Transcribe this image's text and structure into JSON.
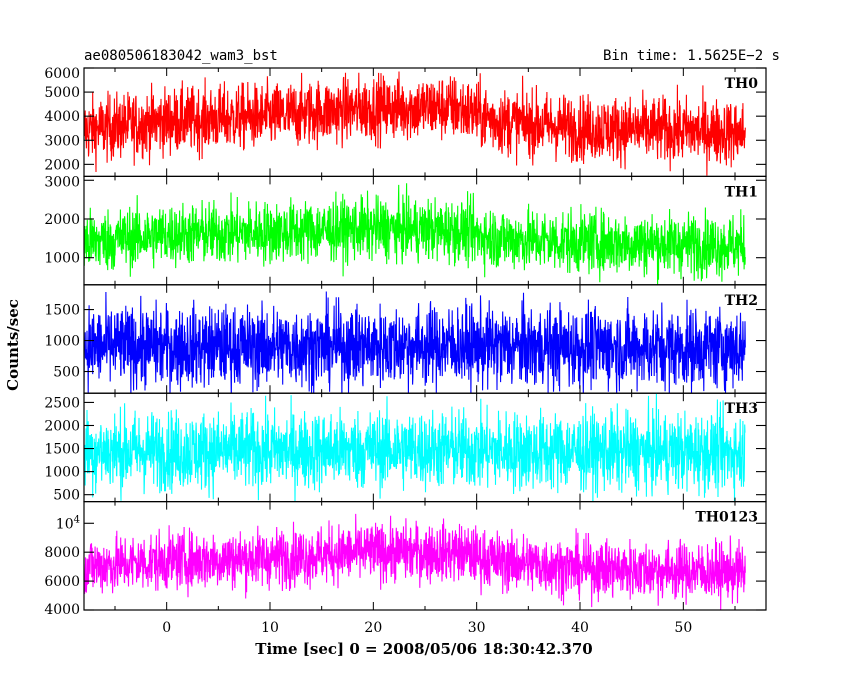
{
  "header": {
    "left": "ae080506183042_wam3_bst",
    "right": "Bin time: 1.5625E−2 s"
  },
  "chart_data": {
    "type": "line",
    "title": "ae080506183042_wam3_bst",
    "xlabel": "Time [sec] 0 = 2008/05/06 18:30:42.370",
    "ylabel": "Counts/sec",
    "xlim": [
      -8,
      58
    ],
    "x_ticks": [
      "0",
      "10",
      "20",
      "30",
      "40",
      "50"
    ],
    "x_tick_values": [
      0,
      10,
      20,
      30,
      40,
      50
    ],
    "data_range_x": [
      -8,
      56
    ],
    "bin_time_s": 0.015625,
    "panels": [
      {
        "name": "TH0",
        "color": "#ff0000",
        "ylim": [
          1500,
          6000
        ],
        "yticks": [
          2000,
          3000,
          4000,
          5000,
          6000
        ],
        "ytick_labels": [
          "2000",
          "3000",
          "4000",
          "5000",
          "6000"
        ],
        "mean_profile": {
          "x": [
            -8,
            0,
            10,
            20,
            28,
            32,
            40,
            50,
            56
          ],
          "y": [
            3400,
            3800,
            4000,
            4350,
            4350,
            3800,
            3500,
            3400,
            3300
          ]
        },
        "noise_spread": 1350
      },
      {
        "name": "TH1",
        "color": "#00ff00",
        "ylim": [
          300,
          3100
        ],
        "yticks": [
          1000,
          2000,
          3000
        ],
        "ytick_labels": [
          "1000",
          "2000",
          "3000"
        ],
        "mean_profile": {
          "x": [
            -8,
            0,
            10,
            20,
            28,
            32,
            40,
            50,
            56
          ],
          "y": [
            1400,
            1600,
            1650,
            1750,
            1700,
            1500,
            1400,
            1350,
            1300
          ]
        },
        "noise_spread": 800
      },
      {
        "name": "TH2",
        "color": "#0000ff",
        "ylim": [
          150,
          1900
        ],
        "yticks": [
          500,
          1000,
          1500
        ],
        "ytick_labels": [
          "500",
          "1000",
          "1500"
        ],
        "mean_profile": {
          "x": [
            -8,
            0,
            10,
            20,
            28,
            32,
            40,
            50,
            56
          ],
          "y": [
            900,
            900,
            900,
            910,
            920,
            900,
            890,
            880,
            880
          ]
        },
        "noise_spread": 650
      },
      {
        "name": "TH3",
        "color": "#00ffff",
        "ylim": [
          350,
          2700
        ],
        "yticks": [
          500,
          1000,
          1500,
          2000,
          2500
        ],
        "ytick_labels": [
          "500",
          "1000",
          "1500",
          "2000",
          "2500"
        ],
        "mean_profile": {
          "x": [
            -8,
            0,
            10,
            20,
            28,
            32,
            40,
            50,
            56
          ],
          "y": [
            1450,
            1450,
            1450,
            1480,
            1480,
            1450,
            1430,
            1420,
            1420
          ]
        },
        "noise_spread": 850
      },
      {
        "name": "TH0123",
        "color": "#ff00ff",
        "ylim": [
          4000,
          11500
        ],
        "yticks": [
          4000,
          6000,
          8000,
          10000
        ],
        "ytick_labels": [
          "4000",
          "6000",
          "8000",
          "10^4"
        ],
        "mean_profile": {
          "x": [
            -8,
            0,
            10,
            20,
            28,
            32,
            40,
            50,
            56
          ],
          "y": [
            7000,
            7400,
            7600,
            8000,
            8000,
            7400,
            6900,
            6700,
            6600
          ]
        },
        "noise_spread": 2000
      }
    ]
  }
}
